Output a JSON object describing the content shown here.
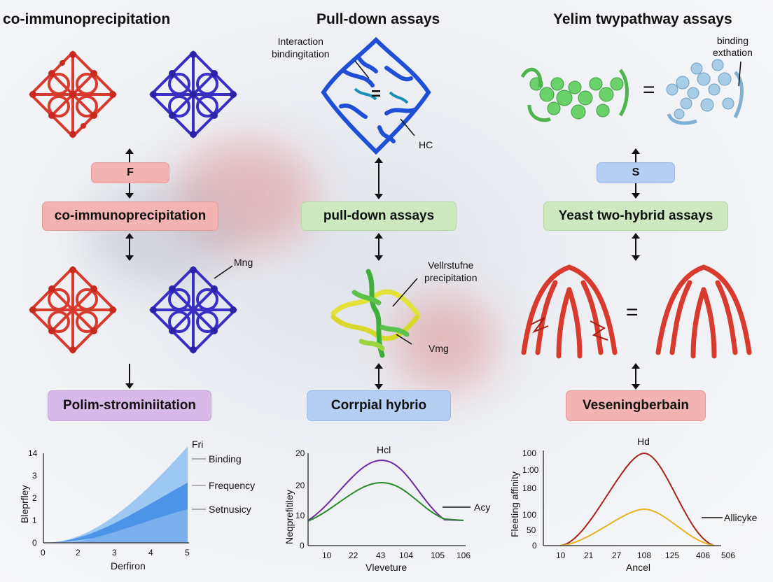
{
  "columns": {
    "left": {
      "title": "co-immunoprecipitation",
      "small_box": "F",
      "main_box": "co-immunoprecipitation",
      "bottom_box": "Polim-strominiitation",
      "label_mid": "Mng"
    },
    "center": {
      "title": "Pull-down assays",
      "label_top": "Interaction\nbindingitation",
      "label_hc": "HC",
      "main_box": "pull-down assays",
      "label_mid": "Vellrstufne\nprecipitation",
      "label_vmg": "Vmg",
      "bottom_box": "Corrpial hybrio"
    },
    "right": {
      "title": "Yelim twypathway assays",
      "label_top": "binding\nexthation",
      "small_box": "S",
      "main_box": "Yeast two-hybrid assays",
      "bottom_box": "Veseningberbain"
    }
  },
  "symbols": {
    "equals": "="
  },
  "colors": {
    "red_protein": "#d93a2e",
    "blue_protein": "#3a2fc4",
    "center_top_protein": "#1f4fd6",
    "green_protein": "#6bd16a",
    "lightblue_protein": "#a9cde6",
    "yellow_protein": "#e2e23a"
  },
  "chart_data": [
    {
      "type": "area",
      "ylabel": "Bleprfley",
      "xlabel": "Derfiron",
      "x_ticks": [
        "0",
        "2",
        "3",
        "4",
        "5"
      ],
      "y_ticks": [
        "14",
        "3",
        "2",
        "1",
        "0"
      ],
      "legend_title": "Fri",
      "legend": [
        "Binding",
        "Frequency",
        "Setnusicy"
      ]
    },
    {
      "type": "line",
      "title": "Hcl",
      "ylabel": "Neqprefitiley",
      "xlabel": "Vleveture",
      "x_ticks": [
        "10",
        "22",
        "43",
        "104",
        "105",
        "106"
      ],
      "y_ticks": [
        "20",
        "20",
        "10",
        "0"
      ],
      "legend": [
        "Acy"
      ]
    },
    {
      "type": "line",
      "title": "Hd",
      "ylabel": "Fleeting affinity",
      "xlabel": "Ancel",
      "x_ticks": [
        "10",
        "21",
        "27",
        "108",
        "125",
        "406",
        "506"
      ],
      "y_ticks": [
        "100",
        "1:00",
        "180",
        "100",
        "50",
        "0"
      ],
      "legend": [
        "Allicyke"
      ]
    }
  ]
}
